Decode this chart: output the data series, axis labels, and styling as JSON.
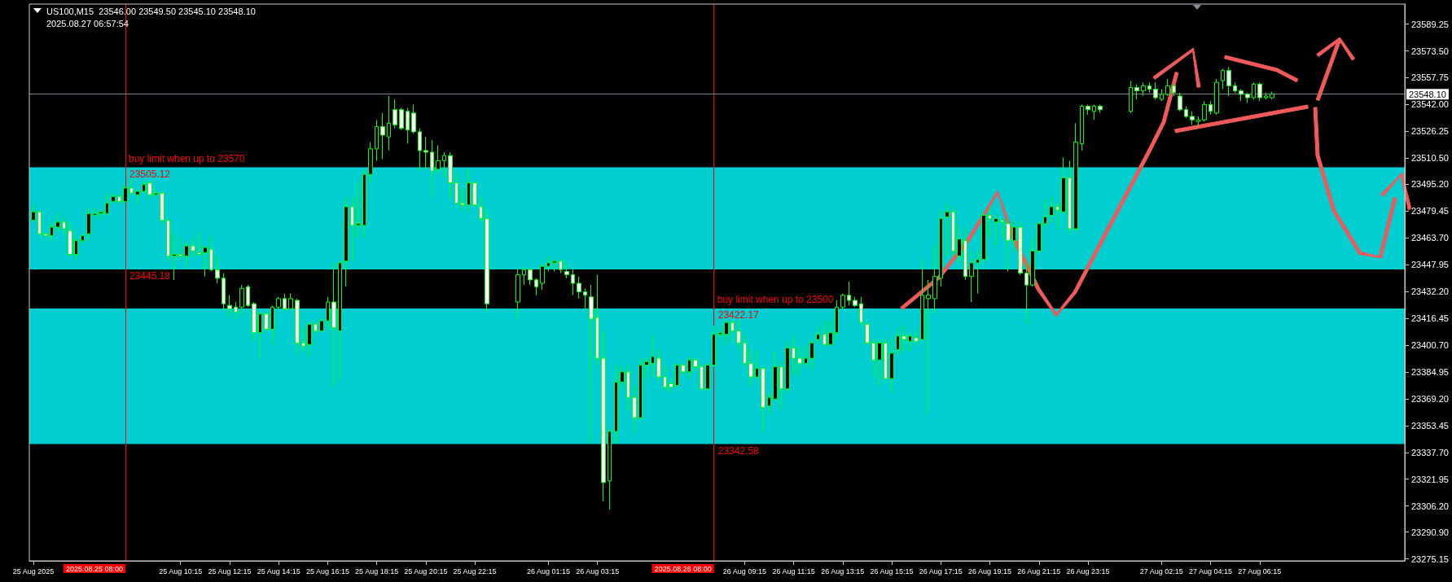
{
  "chart_data": {
    "type": "candlestick",
    "title": "US100,M15  23546.00 23549.50 23545.10 23548.10",
    "subtitle": "2025.08.27 06:57:54",
    "color": "#00ff00",
    "x": [
      "2025-08-25T04:15",
      "2025-08-25T04:30",
      "2025-08-25T04:45",
      "2025-08-25T05:00",
      "2025-08-25T05:15",
      "2025-08-25T05:30",
      "2025-08-25T05:45",
      "2025-08-25T06:00",
      "2025-08-25T06:15",
      "2025-08-25T06:30",
      "2025-08-25T06:45",
      "2025-08-25T07:00",
      "2025-08-25T07:15",
      "2025-08-25T07:30",
      "2025-08-25T07:45",
      "2025-08-25T08:00",
      "2025-08-25T08:15",
      "2025-08-25T08:30",
      "2025-08-25T08:45",
      "2025-08-25T09:00",
      "2025-08-25T09:15",
      "2025-08-25T09:30",
      "2025-08-25T09:45",
      "2025-08-25T10:00",
      "2025-08-25T10:15",
      "2025-08-25T10:30",
      "2025-08-25T10:45",
      "2025-08-25T11:00",
      "2025-08-25T11:15",
      "2025-08-25T11:30",
      "2025-08-25T11:45",
      "2025-08-25T12:00",
      "2025-08-25T12:15",
      "2025-08-25T12:30",
      "2025-08-25T12:45",
      "2025-08-25T13:00",
      "2025-08-25T13:15",
      "2025-08-25T13:30",
      "2025-08-25T13:45",
      "2025-08-25T14:00",
      "2025-08-25T14:15",
      "2025-08-25T14:30",
      "2025-08-25T14:45",
      "2025-08-25T15:00",
      "2025-08-25T15:15",
      "2025-08-25T15:30",
      "2025-08-25T15:45",
      "2025-08-25T16:00",
      "2025-08-25T16:15",
      "2025-08-25T16:30",
      "2025-08-25T16:45",
      "2025-08-25T17:00",
      "2025-08-25T17:15",
      "2025-08-25T17:30",
      "2025-08-25T17:45",
      "2025-08-25T18:00",
      "2025-08-25T18:15",
      "2025-08-25T18:30",
      "2025-08-25T18:45",
      "2025-08-25T19:00",
      "2025-08-25T19:15",
      "2025-08-25T19:30",
      "2025-08-25T19:45",
      "2025-08-25T20:00",
      "2025-08-25T20:15",
      "2025-08-25T20:30",
      "2025-08-25T20:45",
      "2025-08-25T21:00",
      "2025-08-25T21:15",
      "2025-08-25T21:30",
      "2025-08-25T21:45",
      "2025-08-25T22:00",
      "2025-08-25T22:15",
      "2025-08-25T22:30",
      "2025-08-25T22:45",
      "2025-08-26T00:00",
      "2025-08-26T00:15",
      "2025-08-26T00:30",
      "2025-08-26T00:45",
      "2025-08-26T01:00",
      "2025-08-26T01:15",
      "2025-08-26T01:30",
      "2025-08-26T01:45",
      "2025-08-26T02:00",
      "2025-08-26T02:15",
      "2025-08-26T02:30",
      "2025-08-26T02:45",
      "2025-08-26T03:00",
      "2025-08-26T03:15",
      "2025-08-26T03:30",
      "2025-08-26T03:45",
      "2025-08-26T04:00",
      "2025-08-26T04:15",
      "2025-08-26T04:30",
      "2025-08-26T04:45",
      "2025-08-26T05:00",
      "2025-08-26T05:15",
      "2025-08-26T05:30",
      "2025-08-26T05:45",
      "2025-08-26T06:00",
      "2025-08-26T06:15",
      "2025-08-26T06:30",
      "2025-08-26T06:45",
      "2025-08-26T07:00",
      "2025-08-26T07:15",
      "2025-08-26T07:30",
      "2025-08-26T07:45",
      "2025-08-26T08:00",
      "2025-08-26T08:15",
      "2025-08-26T08:30",
      "2025-08-26T08:45",
      "2025-08-26T09:00",
      "2025-08-26T09:15",
      "2025-08-26T09:30",
      "2025-08-26T09:45",
      "2025-08-26T10:00",
      "2025-08-26T10:15",
      "2025-08-26T10:30",
      "2025-08-26T10:45",
      "2025-08-26T11:00",
      "2025-08-26T11:15",
      "2025-08-26T11:30",
      "2025-08-26T11:45",
      "2025-08-26T12:00",
      "2025-08-26T12:15",
      "2025-08-26T12:30",
      "2025-08-26T12:45",
      "2025-08-26T13:00",
      "2025-08-26T13:15",
      "2025-08-26T13:30",
      "2025-08-26T13:45",
      "2025-08-26T14:00",
      "2025-08-26T14:15",
      "2025-08-26T14:30",
      "2025-08-26T14:45",
      "2025-08-26T15:00",
      "2025-08-26T15:15",
      "2025-08-26T15:30",
      "2025-08-26T15:45",
      "2025-08-26T16:00",
      "2025-08-26T16:15",
      "2025-08-26T16:30",
      "2025-08-26T16:45",
      "2025-08-26T17:00",
      "2025-08-26T17:15",
      "2025-08-26T17:30",
      "2025-08-26T17:45",
      "2025-08-26T18:00",
      "2025-08-26T18:15",
      "2025-08-26T18:30",
      "2025-08-26T18:45",
      "2025-08-26T19:00",
      "2025-08-26T19:15",
      "2025-08-26T19:30",
      "2025-08-26T19:45",
      "2025-08-26T20:00",
      "2025-08-26T20:15",
      "2025-08-26T20:30",
      "2025-08-26T20:45",
      "2025-08-26T21:00",
      "2025-08-26T21:15",
      "2025-08-26T21:30",
      "2025-08-26T21:45",
      "2025-08-26T22:00",
      "2025-08-26T22:15",
      "2025-08-26T22:30",
      "2025-08-26T22:45",
      "2025-08-26T23:00",
      "2025-08-26T23:15",
      "2025-08-26T23:30",
      "2025-08-26T23:45",
      "2025-08-27T01:00",
      "2025-08-27T01:15",
      "2025-08-27T01:30",
      "2025-08-27T01:45",
      "2025-08-27T02:00",
      "2025-08-27T02:15",
      "2025-08-27T02:30",
      "2025-08-27T02:45",
      "2025-08-27T03:00",
      "2025-08-27T03:15",
      "2025-08-27T03:30",
      "2025-08-27T03:45",
      "2025-08-27T04:00",
      "2025-08-27T04:15",
      "2025-08-27T04:30",
      "2025-08-27T04:45",
      "2025-08-27T05:00",
      "2025-08-27T05:15",
      "2025-08-27T05:30",
      "2025-08-27T05:45",
      "2025-08-27T06:00",
      "2025-08-27T06:15",
      "2025-08-27T06:30",
      "2025-08-27T06:45"
    ],
    "ohlc": [
      [
        23474,
        23483,
        23473,
        23479
      ],
      [
        23479,
        23480,
        23465,
        23466
      ],
      [
        23466,
        23467,
        23464,
        23465
      ],
      [
        23465,
        23473,
        23462,
        23470
      ],
      [
        23470,
        23479,
        23467,
        23473
      ],
      [
        23473,
        23475,
        23466,
        23469
      ],
      [
        23468,
        23473,
        23453,
        23454
      ],
      [
        23454,
        23464,
        23451,
        23462
      ],
      [
        23462,
        23466,
        23460,
        23465
      ],
      [
        23466,
        23481,
        23462,
        23478
      ],
      [
        23477,
        23481,
        23476,
        23478
      ],
      [
        23478,
        23480,
        23474,
        23479
      ],
      [
        23478,
        23490,
        23477,
        23484
      ],
      [
        23485,
        23490,
        23484,
        23488
      ],
      [
        23488,
        23489,
        23484,
        23485
      ],
      [
        23485,
        23495,
        23484,
        23493
      ],
      [
        23493,
        23498,
        23489,
        23490
      ],
      [
        23489,
        23492,
        23483,
        23491
      ],
      [
        23491,
        23497,
        23490,
        23495
      ],
      [
        23496,
        23497,
        23486,
        23489
      ],
      [
        23489,
        23492,
        23488,
        23490
      ],
      [
        23490,
        23491,
        23472,
        23474
      ],
      [
        23474,
        23475,
        23450,
        23453
      ],
      [
        23453,
        23466,
        23439,
        23454
      ],
      [
        23454,
        23464,
        23451,
        23453
      ],
      [
        23453,
        23461,
        23446,
        23459
      ],
      [
        23459,
        23464,
        23452,
        23456
      ],
      [
        23455,
        23467,
        23453,
        23454
      ],
      [
        23455,
        23459,
        23441,
        23458
      ],
      [
        23457,
        23465,
        23444,
        23445
      ],
      [
        23445,
        23453,
        23437,
        23440
      ],
      [
        23440,
        23443,
        23421,
        23425
      ],
      [
        23424,
        23430,
        23417,
        23422
      ],
      [
        23423,
        23426,
        23416,
        23420
      ],
      [
        23423,
        23436,
        23418,
        23434
      ],
      [
        23435,
        23436,
        23423,
        23424
      ],
      [
        23425,
        23426,
        23403,
        23408
      ],
      [
        23408,
        23420,
        23393,
        23419
      ],
      [
        23419,
        23420,
        23409,
        23410
      ],
      [
        23410,
        23424,
        23401,
        23423
      ],
      [
        23423,
        23429,
        23422,
        23428
      ],
      [
        23428,
        23431,
        23421,
        23422
      ],
      [
        23422,
        23431,
        23421,
        23428
      ],
      [
        23427,
        23428,
        23395,
        23402
      ],
      [
        23402,
        23411,
        23397,
        23400
      ],
      [
        23401,
        23414,
        23394,
        23413
      ],
      [
        23413,
        23414,
        23408,
        23409
      ],
      [
        23409,
        23416,
        23408,
        23415
      ],
      [
        23415,
        23429,
        23410,
        23426
      ],
      [
        23426,
        23449,
        23376,
        23411
      ],
      [
        23409,
        23450,
        23380,
        23449
      ],
      [
        23450,
        23488,
        23435,
        23482
      ],
      [
        23482,
        23488,
        23450,
        23471
      ],
      [
        23471,
        23496,
        23464,
        23472
      ],
      [
        23471,
        23504,
        23464,
        23501
      ],
      [
        23501,
        23520,
        23496,
        23516
      ],
      [
        23516,
        23533,
        23509,
        23529
      ],
      [
        23529,
        23537,
        23510,
        23524
      ],
      [
        23523,
        23547,
        23515,
        23531
      ],
      [
        23539,
        23545,
        23528,
        23530
      ],
      [
        23539,
        23540,
        23527,
        23528
      ],
      [
        23538,
        23540,
        23519,
        23527
      ],
      [
        23537,
        23542,
        23525,
        23526
      ],
      [
        23526,
        23528,
        23503,
        23515
      ],
      [
        23515,
        23523,
        23504,
        23514
      ],
      [
        23514,
        23521,
        23488,
        23503
      ],
      [
        23504,
        23518,
        23502,
        23509
      ],
      [
        23509,
        23514,
        23499,
        23512
      ],
      [
        23512,
        23514,
        23487,
        23496
      ],
      [
        23496,
        23502,
        23483,
        23484
      ],
      [
        23484,
        23492,
        23480,
        23483
      ],
      [
        23483,
        23504,
        23479,
        23496
      ],
      [
        23496,
        23497,
        23482,
        23483
      ],
      [
        23482,
        23488,
        23473,
        23475
      ],
      [
        23475,
        23480,
        23420,
        23425
      ],
      [
        23426,
        23446,
        23416,
        23442
      ],
      [
        23442,
        23447,
        23436,
        23445
      ],
      [
        23445,
        23446,
        23436,
        23439
      ],
      [
        23439,
        23440,
        23430,
        23435
      ],
      [
        23437,
        23449,
        23433,
        23447
      ],
      [
        23447,
        23453,
        23444,
        23449
      ],
      [
        23449,
        23451,
        23444,
        23450
      ],
      [
        23450,
        23451,
        23443,
        23445
      ],
      [
        23444,
        23449,
        23440,
        23442
      ],
      [
        23442,
        23446,
        23430,
        23437
      ],
      [
        23437,
        23441,
        23428,
        23432
      ],
      [
        23432,
        23434,
        23422,
        23430
      ],
      [
        23429,
        23436,
        23344,
        23416
      ],
      [
        23417,
        23442,
        23389,
        23393
      ],
      [
        23393,
        23409,
        23309,
        23320
      ],
      [
        23321,
        23352,
        23304,
        23350
      ],
      [
        23350,
        23389,
        23343,
        23379
      ],
      [
        23379,
        23388,
        23376,
        23385
      ],
      [
        23385,
        23389,
        23362,
        23370
      ],
      [
        23370,
        23377,
        23349,
        23358
      ],
      [
        23358,
        23393,
        23356,
        23389
      ],
      [
        23389,
        23393,
        23382,
        23391
      ],
      [
        23390,
        23407,
        23382,
        23394
      ],
      [
        23393,
        23398,
        23380,
        23382
      ],
      [
        23382,
        23389,
        23374,
        23376
      ],
      [
        23378,
        23380,
        23373,
        23376
      ],
      [
        23377,
        23390,
        23376,
        23389
      ],
      [
        23389,
        23390,
        23383,
        23385
      ],
      [
        23385,
        23394,
        23381,
        23392
      ],
      [
        23392,
        23393,
        23386,
        23388
      ],
      [
        23388,
        23389,
        23374,
        23375
      ],
      [
        23375,
        23390,
        23374,
        23389
      ],
      [
        23389,
        23412,
        23388,
        23407
      ],
      [
        23407,
        23410,
        23405,
        23408
      ],
      [
        23407,
        23415,
        23401,
        23414
      ],
      [
        23414,
        23415,
        23403,
        23409
      ],
      [
        23409,
        23415,
        23398,
        23402
      ],
      [
        23402,
        23407,
        23388,
        23390
      ],
      [
        23390,
        23398,
        23377,
        23382
      ],
      [
        23382,
        23398,
        23381,
        23387
      ],
      [
        23387,
        23388,
        23349,
        23364
      ],
      [
        23365,
        23372,
        23360,
        23370
      ],
      [
        23369,
        23397,
        23368,
        23388
      ],
      [
        23388,
        23391,
        23363,
        23375
      ],
      [
        23375,
        23403,
        23373,
        23399
      ],
      [
        23399,
        23407,
        23383,
        23393
      ],
      [
        23393,
        23400,
        23383,
        23390
      ],
      [
        23390,
        23401,
        23388,
        23393
      ],
      [
        23393,
        23404,
        23386,
        23402
      ],
      [
        23404,
        23412,
        23402,
        23407
      ],
      [
        23407,
        23415,
        23400,
        23401
      ],
      [
        23401,
        23415,
        23400,
        23408
      ],
      [
        23408,
        23427,
        23404,
        23423
      ],
      [
        23423,
        23431,
        23422,
        23430
      ],
      [
        23430,
        23438,
        23424,
        23427
      ],
      [
        23427,
        23429,
        23423,
        23424
      ],
      [
        23425,
        23429,
        23412,
        23414
      ],
      [
        23413,
        23414,
        23401,
        23402
      ],
      [
        23402,
        23404,
        23382,
        23392
      ],
      [
        23392,
        23404,
        23377,
        23402
      ],
      [
        23402,
        23404,
        23380,
        23381
      ],
      [
        23381,
        23405,
        23373,
        23396
      ],
      [
        23398,
        23411,
        23395,
        23406
      ],
      [
        23406,
        23412,
        23396,
        23404
      ],
      [
        23403,
        23408,
        23397,
        23406
      ],
      [
        23405,
        23409,
        23400,
        23403
      ],
      [
        23404,
        23451,
        23403,
        23430
      ],
      [
        23428,
        23439,
        23360,
        23430
      ],
      [
        23428,
        23460,
        23419,
        23441
      ],
      [
        23440,
        23480,
        23435,
        23475
      ],
      [
        23476,
        23484,
        23453,
        23479
      ],
      [
        23479,
        23482,
        23453,
        23456
      ],
      [
        23453,
        23471,
        23449,
        23463
      ],
      [
        23462,
        23470,
        23439,
        23441
      ],
      [
        23441,
        23456,
        23426,
        23449
      ],
      [
        23449,
        23456,
        23431,
        23451
      ],
      [
        23451,
        23479,
        23450,
        23477
      ],
      [
        23477,
        23482,
        23464,
        23475
      ],
      [
        23473,
        23477,
        23459,
        23475
      ],
      [
        23474,
        23475,
        23464,
        23473
      ],
      [
        23472,
        23475,
        23444,
        23462
      ],
      [
        23462,
        23474,
        23456,
        23470
      ],
      [
        23470,
        23473,
        23442,
        23443
      ],
      [
        23443,
        23449,
        23413,
        23436
      ],
      [
        23436,
        23464,
        23435,
        23456
      ],
      [
        23456,
        23473,
        23455,
        23472
      ],
      [
        23472,
        23486,
        23470,
        23476
      ],
      [
        23477,
        23488,
        23472,
        23482
      ],
      [
        23482,
        23484,
        23468,
        23480
      ],
      [
        23479,
        23511,
        23478,
        23499
      ],
      [
        23499,
        23509,
        23466,
        23469
      ],
      [
        23469,
        23531,
        23467,
        23520
      ],
      [
        23519,
        23542,
        23515,
        23541
      ],
      [
        23541,
        23542,
        23536,
        23539
      ],
      [
        23538,
        23542,
        23533,
        23541
      ],
      [
        23541,
        23542,
        23537,
        23539
      ],
      [
        23538,
        23556,
        23537,
        23552
      ],
      [
        23552,
        23554,
        23545,
        23550
      ],
      [
        23550,
        23555,
        23547,
        23553
      ],
      [
        23553,
        23555,
        23549,
        23551
      ],
      [
        23551,
        23555,
        23545,
        23546
      ],
      [
        23545,
        23551,
        23544,
        23548
      ],
      [
        23548,
        23557,
        23547,
        23553
      ],
      [
        23553,
        23554,
        23547,
        23549
      ],
      [
        23547,
        23549,
        23538,
        23539
      ],
      [
        23539,
        23541,
        23534,
        23535
      ],
      [
        23535,
        23538,
        23530,
        23533
      ],
      [
        23532,
        23535,
        23529,
        23533
      ],
      [
        23533,
        23544,
        23532,
        23542
      ],
      [
        23542,
        23544,
        23536,
        23538
      ],
      [
        23537,
        23557,
        23536,
        23555
      ],
      [
        23556,
        23563,
        23551,
        23562
      ],
      [
        23562,
        23564,
        23547,
        23553
      ],
      [
        23553,
        23555,
        23549,
        23550
      ],
      [
        23550,
        23551,
        23544,
        23548
      ],
      [
        23548,
        23549,
        23543,
        23546
      ],
      [
        23546,
        23555,
        23545,
        23554
      ],
      [
        23554,
        23555,
        23544,
        23546
      ],
      [
        23546,
        23549,
        23545,
        23547
      ],
      [
        23546.0,
        23549.5,
        23545.1,
        23548.1
      ]
    ],
    "xlim": [
      "2025-08-25T04:05",
      "2025-08-27T12:10"
    ],
    "xticks": [
      {
        "value": "2025-08-25T04:15",
        "label": "25 Aug 2025"
      },
      {
        "value": "2025-08-25T10:15",
        "label": "25 Aug 10:15"
      },
      {
        "value": "2025-08-25T12:15",
        "label": "25 Aug 12:15"
      },
      {
        "value": "2025-08-25T14:15",
        "label": "25 Aug 14:15"
      },
      {
        "value": "2025-08-25T16:15",
        "label": "25 Aug 16:15"
      },
      {
        "value": "2025-08-25T18:15",
        "label": "25 Aug 18:15"
      },
      {
        "value": "2025-08-25T20:15",
        "label": "25 Aug 20:15"
      },
      {
        "value": "2025-08-25T22:15",
        "label": "25 Aug 22:15"
      },
      {
        "value": "2025-08-26T01:15",
        "label": "26 Aug 01:15"
      },
      {
        "value": "2025-08-26T03:15",
        "label": "26 Aug 03:15"
      },
      {
        "value": "2025-08-26T09:15",
        "label": "26 Aug 09:15"
      },
      {
        "value": "2025-08-26T11:15",
        "label": "26 Aug 11:15"
      },
      {
        "value": "2025-08-26T13:15",
        "label": "26 Aug 13:15"
      },
      {
        "value": "2025-08-26T15:15",
        "label": "26 Aug 15:15"
      },
      {
        "value": "2025-08-26T17:15",
        "label": "26 Aug 17:15"
      },
      {
        "value": "2025-08-26T19:15",
        "label": "26 Aug 19:15"
      },
      {
        "value": "2025-08-26T21:15",
        "label": "26 Aug 21:15"
      },
      {
        "value": "2025-08-26T23:15",
        "label": "26 Aug 23:15"
      },
      {
        "value": "2025-08-27T02:15",
        "label": "27 Aug 02:15"
      },
      {
        "value": "2025-08-27T04:15",
        "label": "27 Aug 04:15"
      },
      {
        "value": "2025-08-27T06:15",
        "label": "27 Aug 06:15"
      }
    ],
    "ylim": [
      23274,
      23601
    ],
    "yticks": [
      23589.25,
      {
        "value": 23573.5,
        "label": "23573.50"
      },
      23557.75,
      {
        "value": 23542,
        "label": "23542.00"
      },
      23526.25,
      {
        "value": 23510.5,
        "label": "23510.50"
      },
      {
        "value": 23495.2,
        "label": "23495.20"
      },
      23479.45,
      {
        "value": 23463.7,
        "label": "23463.70"
      },
      23447.95,
      {
        "value": 23432.2,
        "label": "23432.20"
      },
      23416.45,
      {
        "value": 23400.7,
        "label": "23400.70"
      },
      23384.95,
      {
        "value": 23369.2,
        "label": "23369.20"
      },
      23353.45,
      {
        "value": 23337.7,
        "label": "23337.70"
      },
      23321.95,
      {
        "value": 23306.2,
        "label": "23306.20"
      },
      {
        "value": 23290.9,
        "label": "23290.90"
      },
      23275.15
    ],
    "ref_lines": [
      {
        "axis": "x",
        "value": "2025-08-25T08:00",
        "label": "2025.08.25 08:00",
        "color": "#ff0000"
      },
      {
        "axis": "x",
        "value": "2025-08-26T08:00",
        "label": "2025.08.26 08:00",
        "color": "#ff0000"
      },
      {
        "axis": "y",
        "value": 23548.1,
        "label": "23548.10",
        "color": "#778899"
      }
    ],
    "bands": [
      {
        "axis": "y",
        "from": 23445.18,
        "to": 23505.12,
        "color": "#00ced1"
      },
      {
        "axis": "y",
        "from": 23342.58,
        "to": 23422.17,
        "color": "#00ced1"
      }
    ],
    "annotations": [
      {
        "text": "23505.12",
        "x": "2025-08-25T08:00",
        "y": 23505.12
      },
      {
        "text": "23445.18",
        "x": "2025-08-25T08:00",
        "y": 23445.18
      },
      {
        "text": "23422.17",
        "x": "2025-08-26T08:00",
        "y": 23422.17
      },
      {
        "text": "23342.58",
        "x": "2025-08-26T08:00",
        "y": 23342.58
      },
      "buy limit when up to 23570",
      "buy limit when up to 23500"
    ]
  }
}
